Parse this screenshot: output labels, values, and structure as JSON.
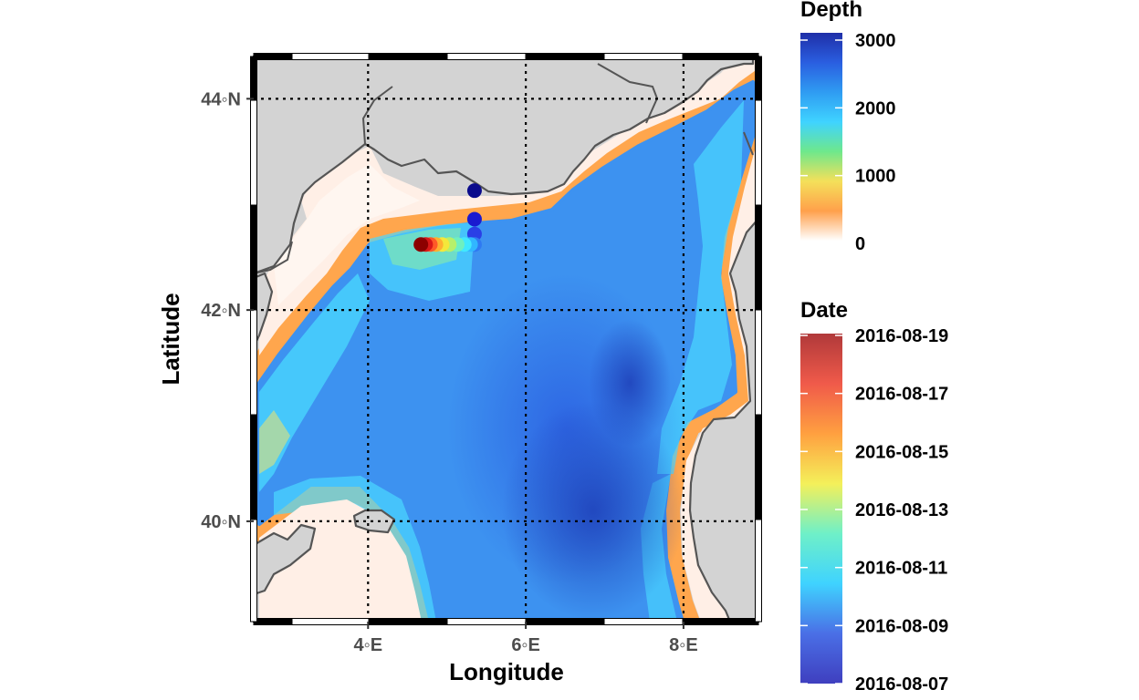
{
  "chart_data": {
    "type": "scatter",
    "xlabel": "Longitude",
    "ylabel": "Latitude",
    "xlim": [
      2.55,
      8.95
    ],
    "ylim": [
      39.05,
      44.4
    ],
    "x_ticks": [
      {
        "value": 4,
        "label": "4◦E"
      },
      {
        "value": 6,
        "label": "6◦E"
      },
      {
        "value": 8,
        "label": "8◦E"
      }
    ],
    "y_ticks": [
      {
        "value": 40,
        "label": "40◦N"
      },
      {
        "value": 42,
        "label": "42◦N"
      },
      {
        "value": 44,
        "label": "44◦N"
      }
    ],
    "grid": "dotted",
    "land_color": "#d3d3d3",
    "depth_legend": {
      "title": "Depth",
      "range": [
        0,
        3000
      ],
      "ticks": [
        {
          "value": 0,
          "label": "0"
        },
        {
          "value": 1000,
          "label": "1000"
        },
        {
          "value": 2000,
          "label": "2000"
        },
        {
          "value": 3000,
          "label": "3000"
        }
      ],
      "colors": [
        "#ffffff",
        "#ffa04b",
        "#f4e05a",
        "#6ee88c",
        "#3fd3ff",
        "#2f9cf2",
        "#2a5ee0",
        "#1f2fa8"
      ]
    },
    "date_legend": {
      "title": "Date",
      "ticks": [
        "2016-08-07",
        "2016-08-09",
        "2016-08-11",
        "2016-08-13",
        "2016-08-15",
        "2016-08-17",
        "2016-08-19"
      ],
      "colors": [
        "#3f3fbf",
        "#4a6fe6",
        "#3fd3ff",
        "#6ff0c8",
        "#f4f05a",
        "#ffa040",
        "#f05a4a",
        "#b0393a"
      ]
    },
    "track_points": [
      {
        "lon": 5.35,
        "lat": 43.13,
        "date": "2016-08-07",
        "color": "#0b0b8c"
      },
      {
        "lon": 5.35,
        "lat": 42.86,
        "date": "2016-08-08",
        "color": "#1a1ad0"
      },
      {
        "lon": 5.35,
        "lat": 42.72,
        "date": "2016-08-09",
        "color": "#2a3fe6"
      },
      {
        "lon": 5.35,
        "lat": 42.62,
        "date": "2016-08-10",
        "color": "#2f79f2"
      },
      {
        "lon": 5.3,
        "lat": 42.62,
        "date": "2016-08-11",
        "color": "#31b6ff"
      },
      {
        "lon": 5.22,
        "lat": 42.62,
        "date": "2016-08-12",
        "color": "#40e8ff"
      },
      {
        "lon": 5.13,
        "lat": 42.62,
        "date": "2016-08-13",
        "color": "#6ef0c0"
      },
      {
        "lon": 5.03,
        "lat": 42.62,
        "date": "2016-08-14",
        "color": "#b6f06a"
      },
      {
        "lon": 4.94,
        "lat": 42.62,
        "date": "2016-08-15",
        "color": "#f4e83a"
      },
      {
        "lon": 4.86,
        "lat": 42.62,
        "date": "2016-08-16",
        "color": "#ffb030"
      },
      {
        "lon": 4.79,
        "lat": 42.62,
        "date": "2016-08-17",
        "color": "#ff5a28"
      },
      {
        "lon": 4.73,
        "lat": 42.62,
        "date": "2016-08-18",
        "color": "#d81818"
      },
      {
        "lon": 4.67,
        "lat": 42.62,
        "date": "2016-08-19",
        "color": "#8c0000"
      }
    ]
  }
}
